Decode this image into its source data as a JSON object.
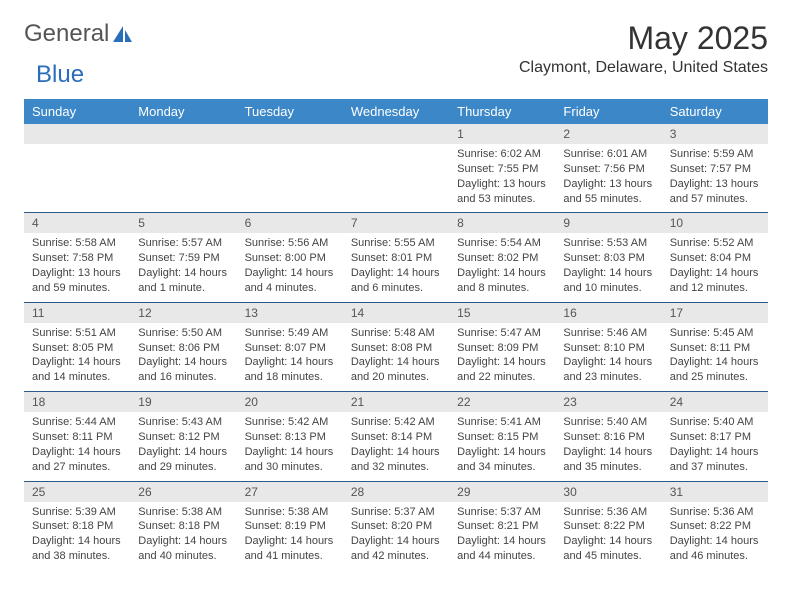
{
  "logo": {
    "text1": "General",
    "text2": "Blue"
  },
  "title": "May 2025",
  "location": "Claymont, Delaware, United States",
  "colors": {
    "header_bg": "#3b87c8",
    "header_text": "#ffffff",
    "daynum_bg": "#e8e8e8",
    "border": "#2a5a8a",
    "logo_gray": "#555555",
    "logo_blue": "#2a6ebb"
  },
  "day_headers": [
    "Sunday",
    "Monday",
    "Tuesday",
    "Wednesday",
    "Thursday",
    "Friday",
    "Saturday"
  ],
  "weeks": [
    {
      "nums": [
        "",
        "",
        "",
        "",
        "1",
        "2",
        "3"
      ],
      "cells": [
        {},
        {},
        {},
        {},
        {
          "sunrise": "Sunrise: 6:02 AM",
          "sunset": "Sunset: 7:55 PM",
          "daylight": "Daylight: 13 hours and 53 minutes."
        },
        {
          "sunrise": "Sunrise: 6:01 AM",
          "sunset": "Sunset: 7:56 PM",
          "daylight": "Daylight: 13 hours and 55 minutes."
        },
        {
          "sunrise": "Sunrise: 5:59 AM",
          "sunset": "Sunset: 7:57 PM",
          "daylight": "Daylight: 13 hours and 57 minutes."
        }
      ]
    },
    {
      "nums": [
        "4",
        "5",
        "6",
        "7",
        "8",
        "9",
        "10"
      ],
      "cells": [
        {
          "sunrise": "Sunrise: 5:58 AM",
          "sunset": "Sunset: 7:58 PM",
          "daylight": "Daylight: 13 hours and 59 minutes."
        },
        {
          "sunrise": "Sunrise: 5:57 AM",
          "sunset": "Sunset: 7:59 PM",
          "daylight": "Daylight: 14 hours and 1 minute."
        },
        {
          "sunrise": "Sunrise: 5:56 AM",
          "sunset": "Sunset: 8:00 PM",
          "daylight": "Daylight: 14 hours and 4 minutes."
        },
        {
          "sunrise": "Sunrise: 5:55 AM",
          "sunset": "Sunset: 8:01 PM",
          "daylight": "Daylight: 14 hours and 6 minutes."
        },
        {
          "sunrise": "Sunrise: 5:54 AM",
          "sunset": "Sunset: 8:02 PM",
          "daylight": "Daylight: 14 hours and 8 minutes."
        },
        {
          "sunrise": "Sunrise: 5:53 AM",
          "sunset": "Sunset: 8:03 PM",
          "daylight": "Daylight: 14 hours and 10 minutes."
        },
        {
          "sunrise": "Sunrise: 5:52 AM",
          "sunset": "Sunset: 8:04 PM",
          "daylight": "Daylight: 14 hours and 12 minutes."
        }
      ]
    },
    {
      "nums": [
        "11",
        "12",
        "13",
        "14",
        "15",
        "16",
        "17"
      ],
      "cells": [
        {
          "sunrise": "Sunrise: 5:51 AM",
          "sunset": "Sunset: 8:05 PM",
          "daylight": "Daylight: 14 hours and 14 minutes."
        },
        {
          "sunrise": "Sunrise: 5:50 AM",
          "sunset": "Sunset: 8:06 PM",
          "daylight": "Daylight: 14 hours and 16 minutes."
        },
        {
          "sunrise": "Sunrise: 5:49 AM",
          "sunset": "Sunset: 8:07 PM",
          "daylight": "Daylight: 14 hours and 18 minutes."
        },
        {
          "sunrise": "Sunrise: 5:48 AM",
          "sunset": "Sunset: 8:08 PM",
          "daylight": "Daylight: 14 hours and 20 minutes."
        },
        {
          "sunrise": "Sunrise: 5:47 AM",
          "sunset": "Sunset: 8:09 PM",
          "daylight": "Daylight: 14 hours and 22 minutes."
        },
        {
          "sunrise": "Sunrise: 5:46 AM",
          "sunset": "Sunset: 8:10 PM",
          "daylight": "Daylight: 14 hours and 23 minutes."
        },
        {
          "sunrise": "Sunrise: 5:45 AM",
          "sunset": "Sunset: 8:11 PM",
          "daylight": "Daylight: 14 hours and 25 minutes."
        }
      ]
    },
    {
      "nums": [
        "18",
        "19",
        "20",
        "21",
        "22",
        "23",
        "24"
      ],
      "cells": [
        {
          "sunrise": "Sunrise: 5:44 AM",
          "sunset": "Sunset: 8:11 PM",
          "daylight": "Daylight: 14 hours and 27 minutes."
        },
        {
          "sunrise": "Sunrise: 5:43 AM",
          "sunset": "Sunset: 8:12 PM",
          "daylight": "Daylight: 14 hours and 29 minutes."
        },
        {
          "sunrise": "Sunrise: 5:42 AM",
          "sunset": "Sunset: 8:13 PM",
          "daylight": "Daylight: 14 hours and 30 minutes."
        },
        {
          "sunrise": "Sunrise: 5:42 AM",
          "sunset": "Sunset: 8:14 PM",
          "daylight": "Daylight: 14 hours and 32 minutes."
        },
        {
          "sunrise": "Sunrise: 5:41 AM",
          "sunset": "Sunset: 8:15 PM",
          "daylight": "Daylight: 14 hours and 34 minutes."
        },
        {
          "sunrise": "Sunrise: 5:40 AM",
          "sunset": "Sunset: 8:16 PM",
          "daylight": "Daylight: 14 hours and 35 minutes."
        },
        {
          "sunrise": "Sunrise: 5:40 AM",
          "sunset": "Sunset: 8:17 PM",
          "daylight": "Daylight: 14 hours and 37 minutes."
        }
      ]
    },
    {
      "nums": [
        "25",
        "26",
        "27",
        "28",
        "29",
        "30",
        "31"
      ],
      "cells": [
        {
          "sunrise": "Sunrise: 5:39 AM",
          "sunset": "Sunset: 8:18 PM",
          "daylight": "Daylight: 14 hours and 38 minutes."
        },
        {
          "sunrise": "Sunrise: 5:38 AM",
          "sunset": "Sunset: 8:18 PM",
          "daylight": "Daylight: 14 hours and 40 minutes."
        },
        {
          "sunrise": "Sunrise: 5:38 AM",
          "sunset": "Sunset: 8:19 PM",
          "daylight": "Daylight: 14 hours and 41 minutes."
        },
        {
          "sunrise": "Sunrise: 5:37 AM",
          "sunset": "Sunset: 8:20 PM",
          "daylight": "Daylight: 14 hours and 42 minutes."
        },
        {
          "sunrise": "Sunrise: 5:37 AM",
          "sunset": "Sunset: 8:21 PM",
          "daylight": "Daylight: 14 hours and 44 minutes."
        },
        {
          "sunrise": "Sunrise: 5:36 AM",
          "sunset": "Sunset: 8:22 PM",
          "daylight": "Daylight: 14 hours and 45 minutes."
        },
        {
          "sunrise": "Sunrise: 5:36 AM",
          "sunset": "Sunset: 8:22 PM",
          "daylight": "Daylight: 14 hours and 46 minutes."
        }
      ]
    }
  ]
}
